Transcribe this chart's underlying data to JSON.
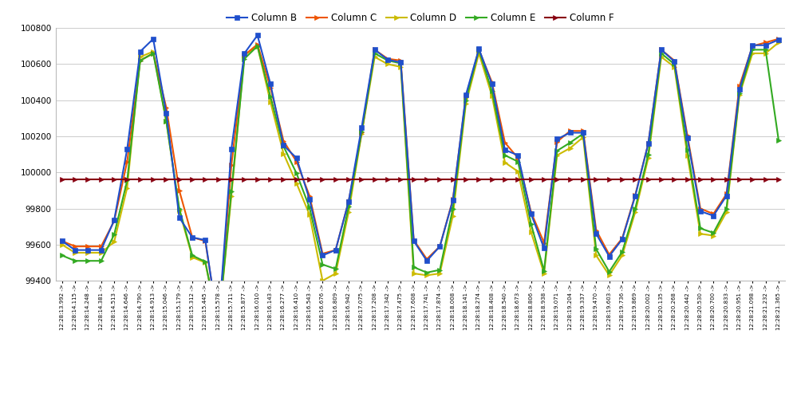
{
  "series_names": [
    "Column B",
    "Column C",
    "Column D",
    "Column E",
    "Column F"
  ],
  "series_colors": [
    "#1F4FCC",
    "#EE5500",
    "#CCBB00",
    "#33AA22",
    "#880011"
  ],
  "series_markers": [
    "s",
    ">",
    ">",
    ">",
    ">"
  ],
  "series_markersizes": [
    4,
    4,
    4,
    4,
    4
  ],
  "series_linewidths": [
    1.5,
    1.5,
    1.5,
    1.5,
    1.5
  ],
  "ylim": [
    99400,
    100800
  ],
  "yticks": [
    99400,
    99600,
    99800,
    100000,
    100200,
    100400,
    100600,
    100800
  ],
  "background_color": "#FFFFFF",
  "grid_color": "#CCCCCC",
  "x_labels": [
    "12:28:13.992 ->",
    "12:28:14.115 ->",
    "12:28:14.248 ->",
    "12:28:14.381 ->",
    "12:28:14.513 ->",
    "12:28:14.646 ->",
    "12:28:14.790 ->",
    "12:28:14.913 ->",
    "12:28:15.046 ->",
    "12:28:15.179 ->",
    "12:28:15.312 ->",
    "12:28:15.445 ->",
    "12:28:15.578 ->",
    "12:28:15.711 ->",
    "12:28:15.877 ->",
    "12:28:16.010 ->",
    "12:28:16.143 ->",
    "12:28:16.277 ->",
    "12:28:16.410 ->",
    "12:28:16.543 ->",
    "12:28:16.676 ->",
    "12:28:16.809 ->",
    "12:28:16.942 ->",
    "12:28:17.075 ->",
    "12:28:17.208 ->",
    "12:28:17.342 ->",
    "12:28:17.475 ->",
    "12:28:17.608 ->",
    "12:28:17.741 ->",
    "12:28:17.874 ->",
    "12:28:18.008 ->",
    "12:28:18.141 ->",
    "12:28:18.274 ->",
    "12:28:18.408 ->",
    "12:28:18.540 ->",
    "12:28:18.673 ->",
    "12:28:18.806 ->",
    "12:28:18.938 ->",
    "12:28:19.071 ->",
    "12:28:19.204 ->",
    "12:28:19.337 ->",
    "12:28:19.470 ->",
    "12:28:19.603 ->",
    "12:28:19.736 ->",
    "12:28:19.869 ->",
    "12:28:20.002 ->",
    "12:28:20.135 ->",
    "12:28:20.268 ->",
    "12:28:20.442 ->",
    "12:28:20.530 ->",
    "12:28:20.700 ->",
    "12:28:20.833 ->",
    "12:28:20.951 ->",
    "12:28:21.098 ->",
    "12:28:21.232 ->",
    "12:28:21.365 ->"
  ],
  "data": [
    [
      99620,
      99570,
      99570,
      99570,
      99735,
      100130,
      100670,
      100740,
      100330,
      99750,
      99640,
      99625,
      99145,
      100130,
      100660,
      100760,
      100490,
      100150,
      100080,
      99850,
      99540,
      99570,
      99840,
      100250,
      100680,
      100625,
      100610,
      99620,
      99510,
      99590,
      99845,
      100430,
      100685,
      100490,
      100125,
      100095,
      99770,
      99580,
      100185,
      100220,
      100220,
      99660,
      99535,
      99630,
      99870,
      100160,
      100680,
      100615,
      100190,
      99785,
      99760,
      99870,
      100460,
      100705,
      100705,
      100735
    ],
    [
      99620,
      99590,
      99590,
      99590,
      99730,
      100060,
      100620,
      100660,
      100360,
      99900,
      99640,
      99620,
      99145,
      100040,
      100650,
      100710,
      100470,
      100175,
      100060,
      99870,
      99550,
      99570,
      99840,
      100220,
      100680,
      100630,
      100620,
      99625,
      99520,
      99590,
      99850,
      100420,
      100680,
      100500,
      100165,
      100080,
      99780,
      99610,
      100170,
      100230,
      100230,
      99680,
      99545,
      99635,
      99875,
      100160,
      100680,
      100620,
      100205,
      99800,
      99770,
      99880,
      100480,
      100700,
      100720,
      100740
    ],
    [
      99600,
      99555,
      99555,
      99555,
      99615,
      99915,
      100640,
      100670,
      100285,
      99790,
      99530,
      99500,
      99145,
      99870,
      100650,
      100700,
      100390,
      100105,
      99940,
      99765,
      99400,
      99440,
      99780,
      100215,
      100640,
      100600,
      100585,
      99440,
      99430,
      99440,
      99760,
      100380,
      100660,
      100425,
      100055,
      100005,
      99670,
      99440,
      100095,
      100135,
      100195,
      99540,
      99430,
      99540,
      99780,
      100080,
      100640,
      100585,
      100095,
      99660,
      99650,
      99780,
      100430,
      100660,
      100660,
      100720
    ],
    [
      99540,
      99510,
      99510,
      99510,
      99655,
      99955,
      100620,
      100660,
      100285,
      99800,
      99540,
      99505,
      99145,
      99895,
      100630,
      100700,
      100420,
      100145,
      99995,
      99805,
      99490,
      99465,
      99810,
      100225,
      100660,
      100620,
      100605,
      99475,
      99445,
      99460,
      99800,
      100400,
      100680,
      100450,
      100095,
      100060,
      99715,
      99455,
      100120,
      100165,
      100215,
      99575,
      99450,
      99560,
      99800,
      100100,
      100660,
      100600,
      100125,
      99690,
      99665,
      99800,
      100440,
      100680,
      100680,
      100180
    ],
    [
      99960,
      99960,
      99960,
      99960,
      99960,
      99960,
      99960,
      99960,
      99960,
      99960,
      99960,
      99960,
      99960,
      99960,
      99960,
      99960,
      99960,
      99960,
      99960,
      99960,
      99960,
      99960,
      99960,
      99960,
      99960,
      99960,
      99960,
      99960,
      99960,
      99960,
      99960,
      99960,
      99960,
      99960,
      99960,
      99960,
      99960,
      99960,
      99960,
      99960,
      99960,
      99960,
      99960,
      99960,
      99960,
      99960,
      99960,
      99960,
      99960,
      99960,
      99960,
      99960,
      99960,
      99960,
      99960,
      99960
    ]
  ]
}
